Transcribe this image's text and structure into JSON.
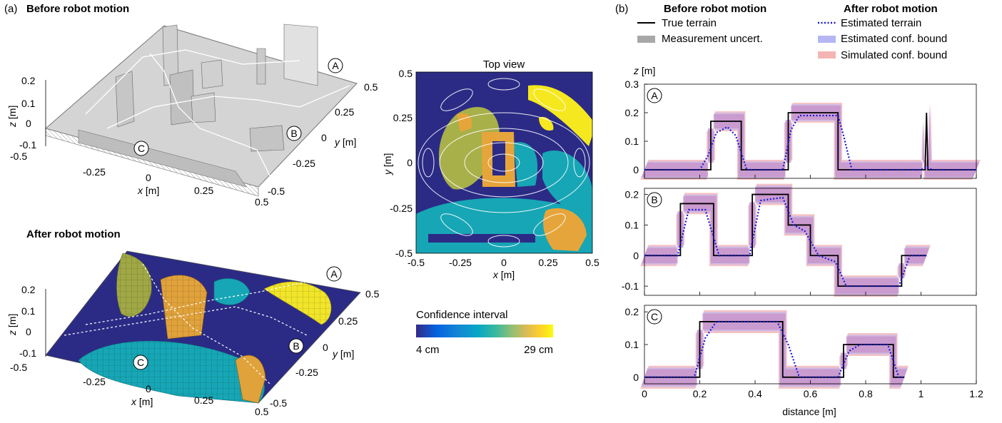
{
  "panel_a": {
    "tag": "(a)",
    "before_title": "Before robot motion",
    "after_title": "After robot motion",
    "x_axis_label": "x",
    "y_axis_label": "y",
    "z_axis_label": "z",
    "unit": "[m]",
    "x_ticks": [
      "-0.5",
      "-0.25",
      "0",
      "0.25",
      "0.5"
    ],
    "y_ticks": [
      "0.5",
      "0.25",
      "0",
      "-0.25",
      "-0.5"
    ],
    "z_ticks": [
      "0.2",
      "0.1",
      "0",
      "-0.1"
    ],
    "markers": [
      "A",
      "B",
      "C"
    ]
  },
  "top_view": {
    "title": "Top view",
    "x_ticks": [
      "-0.5",
      "-0.25",
      "0",
      "0.25",
      "0.5"
    ],
    "y_ticks": [
      "0.5",
      "0.25",
      "0",
      "-0.25",
      "-0.5"
    ],
    "xlabel": "x",
    "ylabel": "y",
    "unit": "[m]",
    "colors": {
      "low": "#2b2b86",
      "mid": "#17a6b5",
      "olive": "#a8b04a",
      "orange": "#e6a53a",
      "high": "#f5e81f"
    }
  },
  "colorbar": {
    "title": "Confidence interval",
    "min_label": "4 cm",
    "max_label": "29 cm",
    "gradient": [
      "#352a87",
      "#0363e1",
      "#1485d4",
      "#06a7c6",
      "#38b99e",
      "#92bf73",
      "#d9ba56",
      "#fcce2e",
      "#f9fb0e"
    ]
  },
  "panel_b": {
    "tag": "(b)",
    "legend": {
      "before_title": "Before robot motion",
      "after_title": "After robot motion",
      "true_terrain": "True terrain",
      "measurement_uncert": "Measurement uncert.",
      "estimated_terrain": "Estimated terrain",
      "estimated_bound": "Estimated conf. bound",
      "simulated_bound": "Simulated conf. bound"
    },
    "ylabel": "z",
    "ylabel_unit": "[m]",
    "xlabel": "distance [m]",
    "x_ticks": [
      "0",
      "0.2",
      "0.4",
      "0.6",
      "0.8",
      "1",
      "1.2"
    ],
    "colors": {
      "true": "#000000",
      "estimated": "#1a1ad6",
      "measurement": "#a8a8a8",
      "est_bound": "#b6b6f5",
      "sim_bound": "#f5b4b4",
      "overlap": "#c890c8"
    }
  },
  "chart_data": [
    {
      "type": "line",
      "title": "A",
      "xlabel": "distance [m]",
      "ylabel": "z [m]",
      "xlim": [
        0,
        1.2
      ],
      "ylim": [
        -0.03,
        0.3
      ],
      "yticks": [
        0,
        0.1,
        0.2,
        0.3
      ],
      "series": [
        {
          "name": "True terrain",
          "x": [
            0,
            0.24,
            0.24,
            0.35,
            0.35,
            0.52,
            0.52,
            0.7,
            0.7,
            1.015,
            1.02,
            1.025,
            1.2
          ],
          "y": [
            0,
            0,
            0.17,
            0.17,
            0,
            0,
            0.2,
            0.2,
            0,
            0,
            0.2,
            0,
            0
          ]
        },
        {
          "name": "Estimated terrain",
          "x": [
            0,
            0.2,
            0.23,
            0.26,
            0.3,
            0.33,
            0.37,
            0.5,
            0.53,
            0.56,
            0.7,
            0.72,
            0.75,
            1.0,
            1.02,
            1.04,
            1.2
          ],
          "y": [
            0,
            0,
            0.05,
            0.13,
            0.15,
            0.12,
            0,
            0,
            0.14,
            0.19,
            0.19,
            0.12,
            0,
            0,
            0.01,
            0,
            0
          ]
        }
      ]
    },
    {
      "type": "line",
      "title": "B",
      "xlabel": "distance [m]",
      "ylabel": "z [m]",
      "xlim": [
        0,
        1.2
      ],
      "ylim": [
        -0.13,
        0.22
      ],
      "yticks": [
        -0.1,
        0,
        0.1,
        0.2
      ],
      "series": [
        {
          "name": "True terrain",
          "x": [
            0,
            0.13,
            0.13,
            0.25,
            0.25,
            0.39,
            0.39,
            0.52,
            0.52,
            0.6,
            0.6,
            0.7,
            0.7,
            0.93,
            0.93,
            1.02
          ],
          "y": [
            0,
            0,
            0.17,
            0.17,
            0,
            0,
            0.2,
            0.2,
            0.1,
            0.1,
            0,
            0,
            -0.1,
            -0.1,
            0,
            0
          ]
        },
        {
          "name": "Estimated terrain",
          "x": [
            0,
            0.12,
            0.16,
            0.22,
            0.27,
            0.38,
            0.42,
            0.5,
            0.54,
            0.58,
            0.63,
            0.69,
            0.73,
            0.92,
            0.96,
            1.02
          ],
          "y": [
            0,
            0,
            0.15,
            0.15,
            0,
            0,
            0.18,
            0.19,
            0.1,
            0.08,
            0,
            -0.02,
            -0.1,
            -0.1,
            0,
            0
          ]
        }
      ]
    },
    {
      "type": "line",
      "title": "C",
      "xlabel": "distance [m]",
      "ylabel": "z [m]",
      "xlim": [
        0,
        1.2
      ],
      "ylim": [
        -0.02,
        0.22
      ],
      "yticks": [
        0,
        0.1,
        0.2
      ],
      "series": [
        {
          "name": "True terrain",
          "x": [
            0,
            0.2,
            0.2,
            0.5,
            0.5,
            0.72,
            0.72,
            0.9,
            0.9,
            0.94
          ],
          "y": [
            0,
            0,
            0.17,
            0.17,
            0,
            0,
            0.1,
            0.1,
            0,
            0
          ]
        },
        {
          "name": "Estimated terrain",
          "x": [
            0,
            0.18,
            0.22,
            0.26,
            0.48,
            0.52,
            0.56,
            0.7,
            0.74,
            0.78,
            0.88,
            0.92,
            0.94
          ],
          "y": [
            0,
            0,
            0.12,
            0.17,
            0.17,
            0.1,
            0,
            0,
            0.08,
            0.1,
            0.1,
            0,
            0
          ]
        }
      ]
    }
  ]
}
